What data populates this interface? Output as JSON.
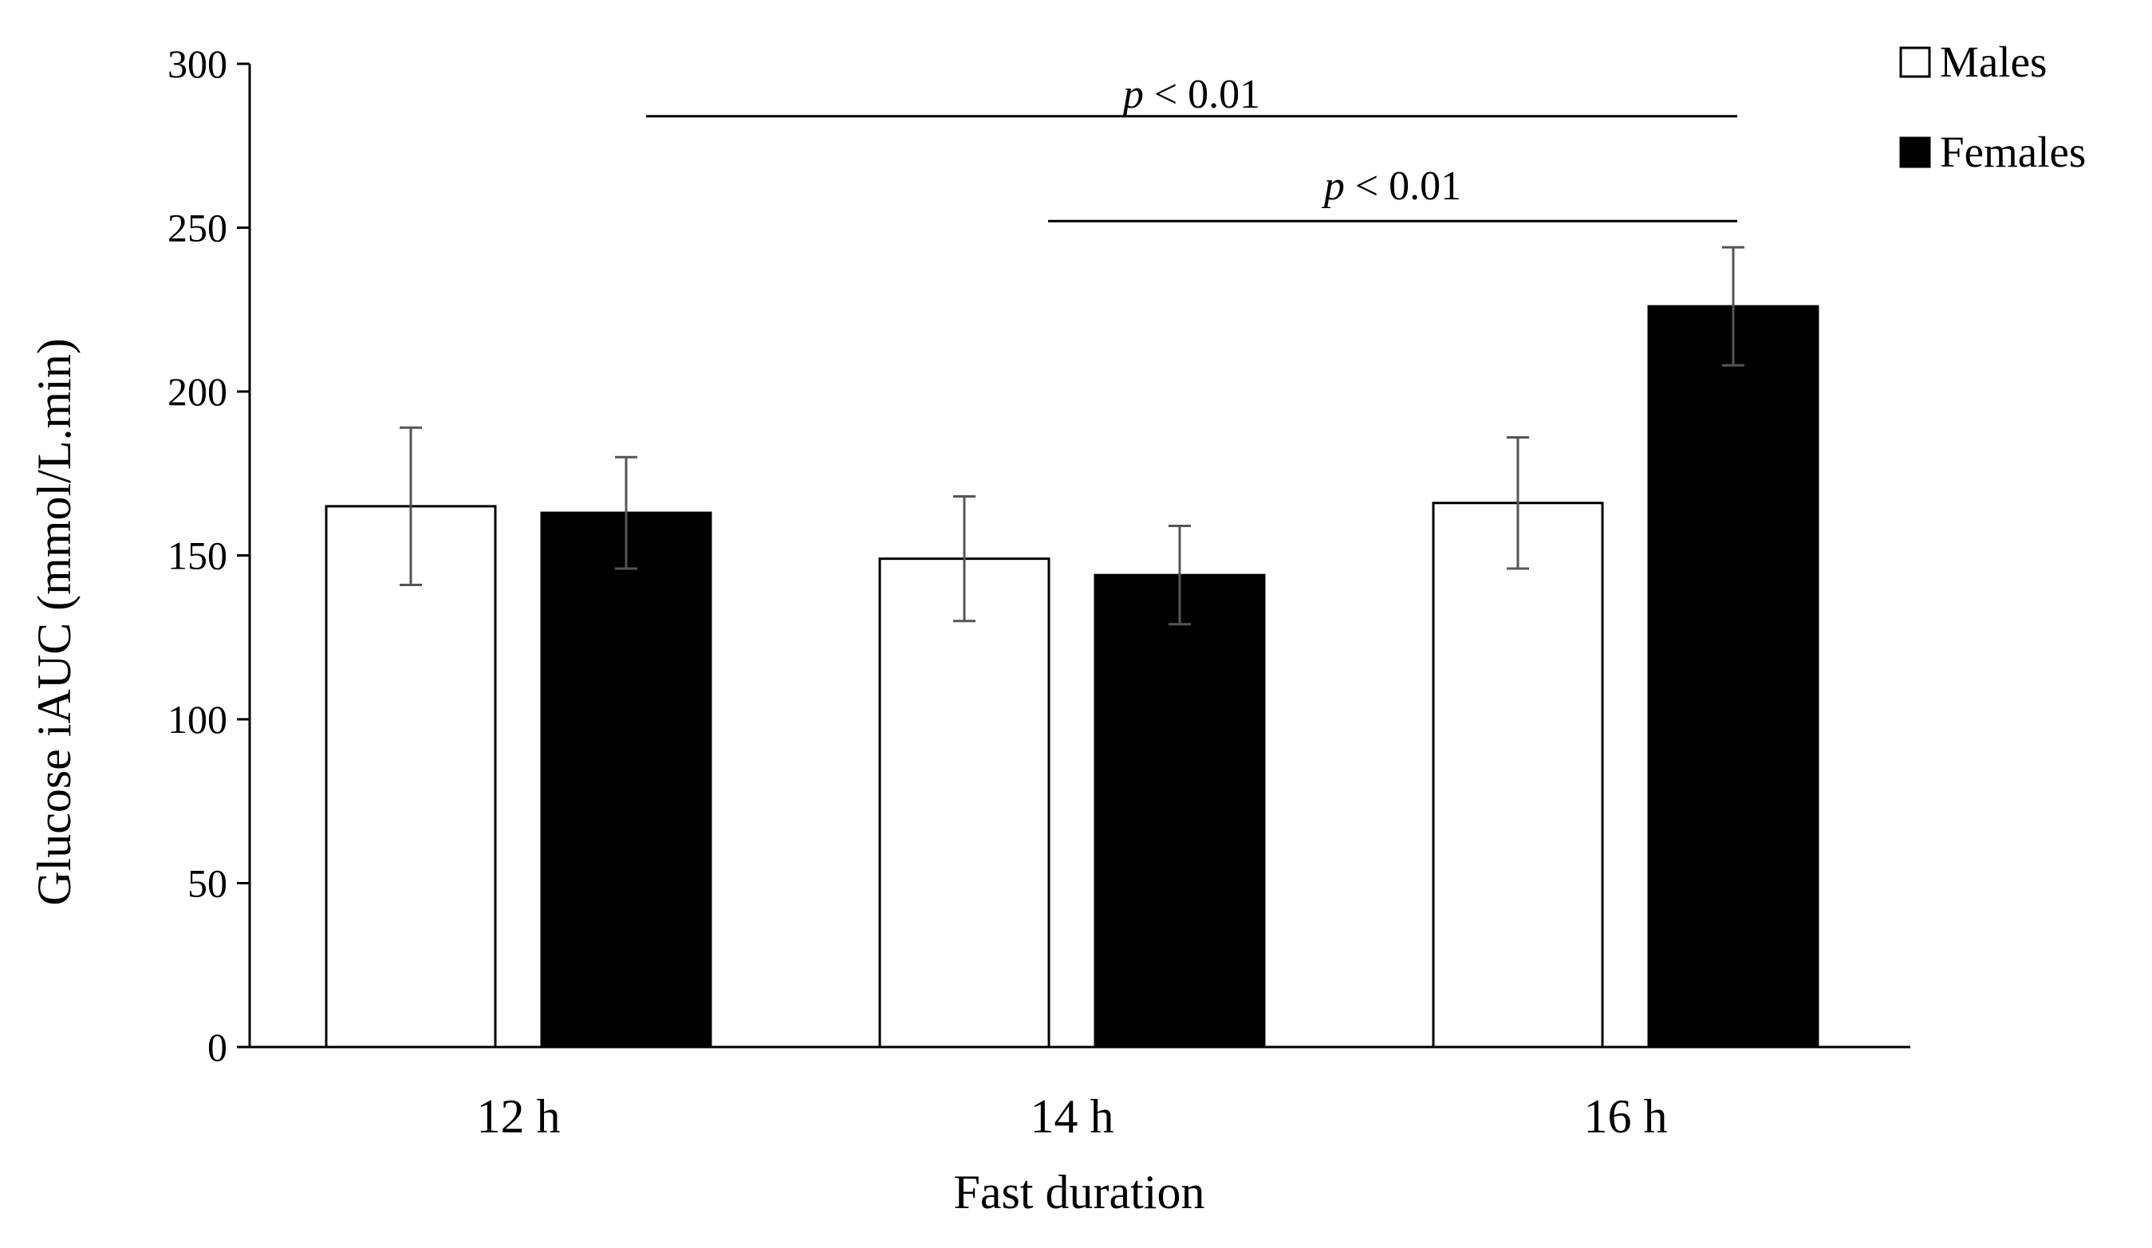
{
  "chart_data": {
    "type": "bar",
    "title": "",
    "xlabel": "Fast duration",
    "ylabel": "Glucose iAUC (mmol/L.min)",
    "ylim": [
      0,
      300
    ],
    "yticks": [
      0,
      50,
      100,
      150,
      200,
      250,
      300
    ],
    "categories": [
      "12 h",
      "14 h",
      "16 h"
    ],
    "series": [
      {
        "name": "Males",
        "color": "#ffffff",
        "values": [
          165,
          149,
          166
        ],
        "errors": [
          24,
          19,
          20
        ]
      },
      {
        "name": "Females",
        "color": "#000000",
        "values": [
          163,
          144,
          226
        ],
        "errors": [
          17,
          15,
          18
        ]
      }
    ],
    "legend_position": "top-right",
    "annotations": [
      {
        "p": "p",
        "text": " < 0.01",
        "from_category": "12 h",
        "to_category": "16 h",
        "y": 284,
        "label_y": 290
      },
      {
        "p": "p",
        "text": " < 0.01",
        "from_category": "14 h",
        "to_category": "16 h",
        "y": 252,
        "label_y": 262
      }
    ]
  }
}
